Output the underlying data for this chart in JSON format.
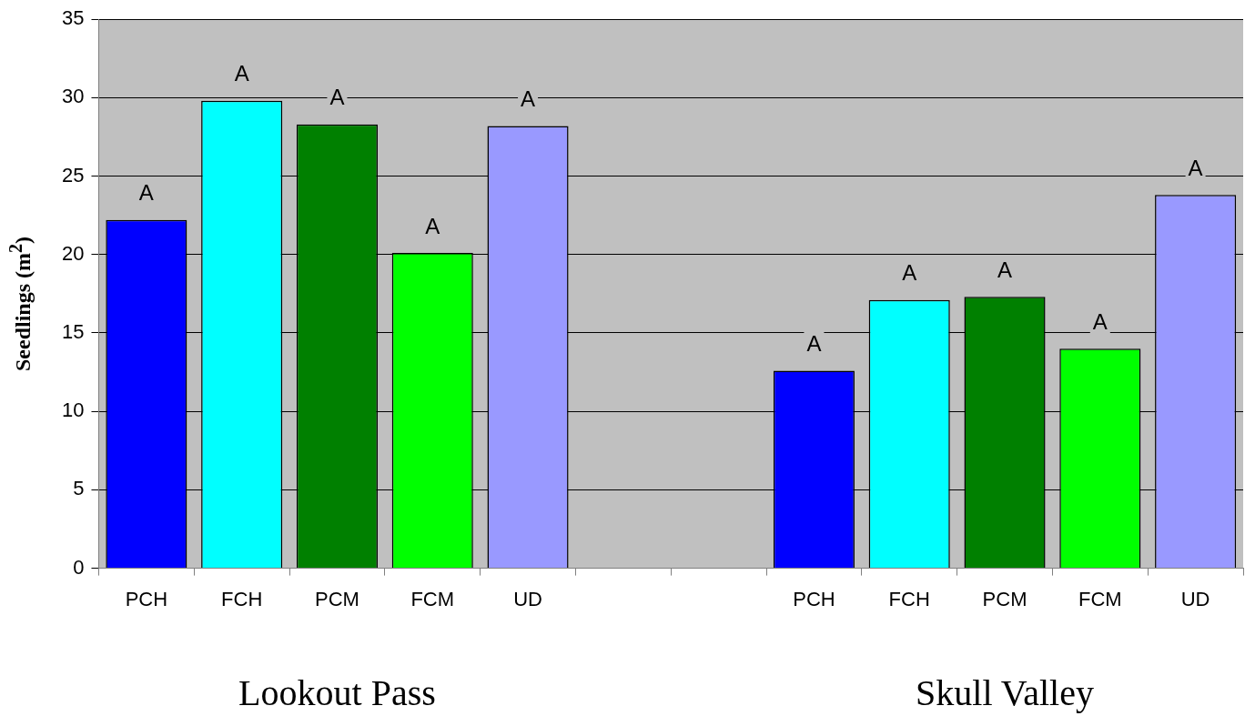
{
  "chart_data": {
    "type": "bar",
    "categories": [
      "PCH",
      "FCH",
      "PCM",
      "FCM",
      "UD",
      null,
      null,
      "PCH",
      "FCH",
      "PCM",
      "FCM",
      "UD"
    ],
    "values": [
      22.2,
      29.8,
      28.3,
      20.1,
      28.2,
      null,
      null,
      12.6,
      17.1,
      17.3,
      14.0,
      23.8
    ],
    "colors": [
      "#0000ff",
      "#00ffff",
      "#008000",
      "#00ff00",
      "#9999ff",
      null,
      null,
      "#0000ff",
      "#00ffff",
      "#008000",
      "#00ff00",
      "#9999ff"
    ],
    "value_labels": [
      "A",
      "A",
      "A",
      "A",
      "A",
      null,
      null,
      "A",
      "A",
      "A",
      "A",
      "A"
    ],
    "ylabel": "Seedlings (m$^{2}$)",
    "ylim": [
      0,
      35
    ],
    "yticks": [
      0,
      5,
      10,
      15,
      20,
      25,
      30,
      35
    ],
    "grid": "y",
    "annotations": [
      "Lookout Pass",
      "Skull Valley"
    ]
  }
}
